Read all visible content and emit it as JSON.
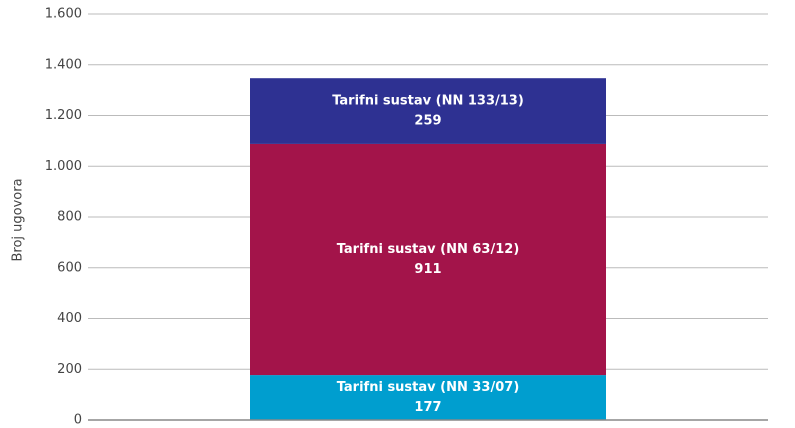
{
  "chart_data": {
    "type": "stacked_bar",
    "y_label": "Broj ugovora",
    "categories": [
      null
    ],
    "series": [
      {
        "name": "Tarifni sustav (NN 33/07)",
        "color": "#009ecf",
        "values": [
          177
        ]
      },
      {
        "name": "Tarifni sustav (NN 63/12)",
        "color": "#a3144a",
        "values": [
          911
        ]
      },
      {
        "name": "Tarifni sustav (NN 133/13)",
        "color": "#2e3192",
        "values": [
          259
        ]
      }
    ],
    "ylim": [
      0,
      1600
    ],
    "yticks": [
      0,
      200,
      400,
      600,
      800,
      {
        "value": 1000,
        "label": "1.000"
      },
      {
        "value": 1200,
        "label": "1.200"
      },
      {
        "value": 1400,
        "label": "1.400"
      },
      {
        "value": 1600,
        "label": "1.600"
      }
    ],
    "grid": true
  }
}
